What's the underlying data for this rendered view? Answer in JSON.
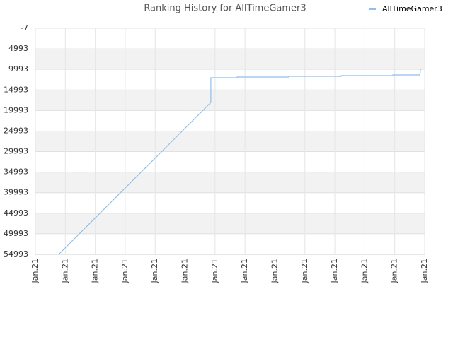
{
  "chart_data": {
    "type": "line",
    "title": "Ranking History for AllTimeGamer3",
    "x": [
      0.78,
      5.86,
      5.86,
      6.74,
      6.74,
      8.46,
      8.46,
      10.21,
      10.21,
      11.94,
      11.94,
      12.79,
      12.84,
      12.86
    ],
    "series": [
      {
        "name": "AllTimeGamer3",
        "color": "#8fbfef",
        "values": [
          54993,
          18040,
          12024,
          12024,
          11850,
          11850,
          11680,
          11680,
          11510,
          11510,
          11340,
          11340,
          11340,
          9960
        ]
      }
    ],
    "xlim": [
      0,
      13
    ],
    "xticks": [
      {
        "value": 0,
        "label": "Jan.21"
      },
      {
        "value": 1,
        "label": "Jan.21"
      },
      {
        "value": 2,
        "label": "Jan.21"
      },
      {
        "value": 3,
        "label": "Jan.21"
      },
      {
        "value": 4,
        "label": "Jan.21"
      },
      {
        "value": 5,
        "label": "Jan.21"
      },
      {
        "value": 6,
        "label": "Jan.21"
      },
      {
        "value": 7,
        "label": "Jan.21"
      },
      {
        "value": 8,
        "label": "Jan.21"
      },
      {
        "value": 9,
        "label": "Jan.21"
      },
      {
        "value": 10,
        "label": "Jan.21"
      },
      {
        "value": 11,
        "label": "Jan.21"
      },
      {
        "value": 12,
        "label": "Jan.21"
      },
      {
        "value": 13,
        "label": "Jan.21"
      }
    ],
    "ylim": [
      -7,
      54993
    ],
    "y_inverted": true,
    "yticks": [
      -7,
      4993,
      9993,
      14993,
      19993,
      24993,
      29993,
      34993,
      39993,
      44993,
      49993,
      54993
    ],
    "grid": true,
    "legend": "top-right"
  }
}
